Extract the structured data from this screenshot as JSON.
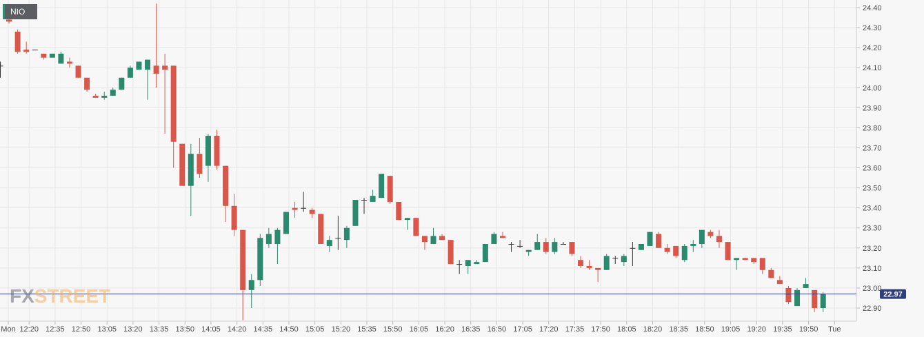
{
  "symbol": "NIO",
  "watermark": {
    "part1": "FX",
    "part2": "STREET"
  },
  "colors": {
    "up": "#2b8a6e",
    "down": "#d9574a",
    "wick": "#333333",
    "last_price_line": "#2f3f7a",
    "last_price_label_bg": "#2f3f7a",
    "grid": "#e6e6e6",
    "background": "#f7f7f8"
  },
  "chart_data": {
    "type": "candlestick",
    "interval_minutes": 5,
    "ylim": [
      22.85,
      24.42
    ],
    "yticks": [
      "22.90",
      "23.00",
      "23.10",
      "23.20",
      "23.30",
      "23.40",
      "23.50",
      "23.60",
      "23.70",
      "23.80",
      "23.90",
      "24.00",
      "24.10",
      "24.20",
      "24.30",
      "24.40"
    ],
    "xticks": [
      "Mon",
      "12:20",
      "12:35",
      "12:50",
      "13:05",
      "13:20",
      "13:35",
      "13:50",
      "14:05",
      "14:20",
      "14:35",
      "14:50",
      "15:05",
      "15:20",
      "15:35",
      "15:50",
      "16:05",
      "16:20",
      "16:35",
      "16:50",
      "17:05",
      "17:20",
      "17:35",
      "17:50",
      "18:05",
      "18:20",
      "18:35",
      "18:50",
      "19:05",
      "19:20",
      "19:35",
      "19:50",
      "Tue"
    ],
    "last_price": "22.97",
    "candles": [
      {
        "o": 24.11,
        "h": 24.13,
        "l": 24.05,
        "c": 24.11
      },
      {
        "o": 24.34,
        "h": 24.35,
        "l": 24.32,
        "c": 24.33
      },
      {
        "o": 24.28,
        "h": 24.29,
        "l": 24.17,
        "c": 24.18
      },
      {
        "o": 24.19,
        "h": 24.23,
        "l": 24.17,
        "c": 24.18
      },
      {
        "o": 24.19,
        "h": 24.19,
        "l": 24.19,
        "c": 24.19
      },
      {
        "o": 24.17,
        "h": 24.17,
        "l": 24.14,
        "c": 24.15
      },
      {
        "o": 24.15,
        "h": 24.17,
        "l": 24.15,
        "c": 24.17
      },
      {
        "o": 24.12,
        "h": 24.18,
        "l": 24.12,
        "c": 24.17
      },
      {
        "o": 24.13,
        "h": 24.15,
        "l": 24.1,
        "c": 24.12
      },
      {
        "o": 24.11,
        "h": 24.11,
        "l": 24.05,
        "c": 24.05
      },
      {
        "o": 24.05,
        "h": 24.05,
        "l": 23.98,
        "c": 23.99
      },
      {
        "o": 23.96,
        "h": 23.97,
        "l": 23.95,
        "c": 23.95
      },
      {
        "o": 23.95,
        "h": 23.98,
        "l": 23.94,
        "c": 23.96
      },
      {
        "o": 23.96,
        "h": 24.0,
        "l": 23.96,
        "c": 23.99
      },
      {
        "o": 23.99,
        "h": 24.05,
        "l": 23.99,
        "c": 24.05
      },
      {
        "o": 24.05,
        "h": 24.11,
        "l": 24.05,
        "c": 24.1
      },
      {
        "o": 24.09,
        "h": 24.13,
        "l": 24.09,
        "c": 24.13
      },
      {
        "o": 24.09,
        "h": 24.14,
        "l": 23.94,
        "c": 24.14
      },
      {
        "o": 24.11,
        "h": 24.42,
        "l": 24.0,
        "c": 24.07
      },
      {
        "o": 24.11,
        "h": 24.17,
        "l": 23.77,
        "c": 24.09
      },
      {
        "o": 24.11,
        "h": 24.11,
        "l": 23.6,
        "c": 23.73
      },
      {
        "o": 23.72,
        "h": 23.72,
        "l": 23.51,
        "c": 23.51
      },
      {
        "o": 23.51,
        "h": 23.72,
        "l": 23.36,
        "c": 23.67
      },
      {
        "o": 23.67,
        "h": 23.75,
        "l": 23.55,
        "c": 23.57
      },
      {
        "o": 23.61,
        "h": 23.77,
        "l": 23.53,
        "c": 23.76
      },
      {
        "o": 23.76,
        "h": 23.79,
        "l": 23.59,
        "c": 23.61
      },
      {
        "o": 23.61,
        "h": 23.61,
        "l": 23.33,
        "c": 23.41
      },
      {
        "o": 23.41,
        "h": 23.47,
        "l": 23.26,
        "c": 23.29
      },
      {
        "o": 23.29,
        "h": 23.29,
        "l": 22.84,
        "c": 22.99
      },
      {
        "o": 22.99,
        "h": 23.07,
        "l": 22.9,
        "c": 23.04
      },
      {
        "o": 23.04,
        "h": 23.27,
        "l": 23.01,
        "c": 23.25
      },
      {
        "o": 23.22,
        "h": 23.3,
        "l": 23.2,
        "c": 23.27
      },
      {
        "o": 23.22,
        "h": 23.3,
        "l": 23.12,
        "c": 23.29
      },
      {
        "o": 23.27,
        "h": 23.38,
        "l": 23.27,
        "c": 23.38
      },
      {
        "o": 23.4,
        "h": 23.43,
        "l": 23.35,
        "c": 23.39
      },
      {
        "o": 23.4,
        "h": 23.48,
        "l": 23.38,
        "c": 23.4
      },
      {
        "o": 23.39,
        "h": 23.4,
        "l": 23.35,
        "c": 23.37
      },
      {
        "o": 23.37,
        "h": 23.37,
        "l": 23.22,
        "c": 23.22
      },
      {
        "o": 23.21,
        "h": 23.26,
        "l": 23.18,
        "c": 23.24
      },
      {
        "o": 23.25,
        "h": 23.36,
        "l": 23.19,
        "c": 23.25
      },
      {
        "o": 23.24,
        "h": 23.31,
        "l": 23.2,
        "c": 23.3
      },
      {
        "o": 23.31,
        "h": 23.44,
        "l": 23.31,
        "c": 23.44
      },
      {
        "o": 23.44,
        "h": 23.45,
        "l": 23.37,
        "c": 23.44
      },
      {
        "o": 23.43,
        "h": 23.49,
        "l": 23.43,
        "c": 23.46
      },
      {
        "o": 23.45,
        "h": 23.57,
        "l": 23.45,
        "c": 23.57
      },
      {
        "o": 23.56,
        "h": 23.56,
        "l": 23.42,
        "c": 23.43
      },
      {
        "o": 23.43,
        "h": 23.43,
        "l": 23.34,
        "c": 23.34
      },
      {
        "o": 23.34,
        "h": 23.35,
        "l": 23.29,
        "c": 23.35
      },
      {
        "o": 23.35,
        "h": 23.35,
        "l": 23.26,
        "c": 23.26
      },
      {
        "o": 23.26,
        "h": 23.26,
        "l": 23.19,
        "c": 23.23
      },
      {
        "o": 23.22,
        "h": 23.3,
        "l": 23.22,
        "c": 23.26
      },
      {
        "o": 23.26,
        "h": 23.27,
        "l": 23.24,
        "c": 23.24
      },
      {
        "o": 23.24,
        "h": 23.24,
        "l": 23.12,
        "c": 23.12
      },
      {
        "o": 23.12,
        "h": 23.14,
        "l": 23.07,
        "c": 23.12
      },
      {
        "o": 23.11,
        "h": 23.14,
        "l": 23.07,
        "c": 23.14
      },
      {
        "o": 23.12,
        "h": 23.14,
        "l": 23.12,
        "c": 23.13
      },
      {
        "o": 23.13,
        "h": 23.22,
        "l": 23.13,
        "c": 23.22
      },
      {
        "o": 23.22,
        "h": 23.28,
        "l": 23.22,
        "c": 23.27
      },
      {
        "o": 23.26,
        "h": 23.28,
        "l": 23.25,
        "c": 23.25
      },
      {
        "o": 23.22,
        "h": 23.23,
        "l": 23.18,
        "c": 23.22
      },
      {
        "o": 23.21,
        "h": 23.24,
        "l": 23.2,
        "c": 23.21
      },
      {
        "o": 23.18,
        "h": 23.19,
        "l": 23.16,
        "c": 23.19
      },
      {
        "o": 23.19,
        "h": 23.27,
        "l": 23.19,
        "c": 23.23
      },
      {
        "o": 23.23,
        "h": 23.25,
        "l": 23.17,
        "c": 23.18
      },
      {
        "o": 23.18,
        "h": 23.25,
        "l": 23.17,
        "c": 23.23
      },
      {
        "o": 23.22,
        "h": 23.23,
        "l": 23.22,
        "c": 23.22
      },
      {
        "o": 23.23,
        "h": 23.23,
        "l": 23.16,
        "c": 23.17
      },
      {
        "o": 23.14,
        "h": 23.16,
        "l": 23.1,
        "c": 23.11
      },
      {
        "o": 23.11,
        "h": 23.14,
        "l": 23.09,
        "c": 23.1
      },
      {
        "o": 23.1,
        "h": 23.1,
        "l": 23.03,
        "c": 23.09
      },
      {
        "o": 23.09,
        "h": 23.17,
        "l": 23.09,
        "c": 23.16
      },
      {
        "o": 23.15,
        "h": 23.16,
        "l": 23.12,
        "c": 23.15
      },
      {
        "o": 23.13,
        "h": 23.17,
        "l": 23.11,
        "c": 23.16
      },
      {
        "o": 23.2,
        "h": 23.23,
        "l": 23.11,
        "c": 23.2
      },
      {
        "o": 23.19,
        "h": 23.22,
        "l": 23.19,
        "c": 23.22
      },
      {
        "o": 23.21,
        "h": 23.28,
        "l": 23.21,
        "c": 23.28
      },
      {
        "o": 23.27,
        "h": 23.28,
        "l": 23.2,
        "c": 23.2
      },
      {
        "o": 23.2,
        "h": 23.22,
        "l": 23.17,
        "c": 23.18
      },
      {
        "o": 23.21,
        "h": 23.21,
        "l": 23.15,
        "c": 23.16
      },
      {
        "o": 23.14,
        "h": 23.22,
        "l": 23.13,
        "c": 23.21
      },
      {
        "o": 23.21,
        "h": 23.24,
        "l": 23.18,
        "c": 23.22
      },
      {
        "o": 23.22,
        "h": 23.29,
        "l": 23.2,
        "c": 23.29
      },
      {
        "o": 23.28,
        "h": 23.29,
        "l": 23.25,
        "c": 23.26
      },
      {
        "o": 23.26,
        "h": 23.29,
        "l": 23.2,
        "c": 23.23
      },
      {
        "o": 23.23,
        "h": 23.23,
        "l": 23.14,
        "c": 23.14
      },
      {
        "o": 23.14,
        "h": 23.15,
        "l": 23.09,
        "c": 23.15
      },
      {
        "o": 23.15,
        "h": 23.15,
        "l": 23.14,
        "c": 23.14
      },
      {
        "o": 23.15,
        "h": 23.15,
        "l": 23.12,
        "c": 23.13
      },
      {
        "o": 23.15,
        "h": 23.15,
        "l": 23.07,
        "c": 23.09
      },
      {
        "o": 23.09,
        "h": 23.1,
        "l": 23.05,
        "c": 23.05
      },
      {
        "o": 23.04,
        "h": 23.06,
        "l": 23.02,
        "c": 23.02
      },
      {
        "o": 23.0,
        "h": 23.01,
        "l": 22.92,
        "c": 22.93
      },
      {
        "o": 22.91,
        "h": 23.0,
        "l": 22.91,
        "c": 22.99
      },
      {
        "o": 23.0,
        "h": 23.05,
        "l": 23.0,
        "c": 23.02
      },
      {
        "o": 22.99,
        "h": 22.99,
        "l": 22.88,
        "c": 22.9
      },
      {
        "o": 22.9,
        "h": 22.98,
        "l": 22.88,
        "c": 22.97
      }
    ]
  }
}
